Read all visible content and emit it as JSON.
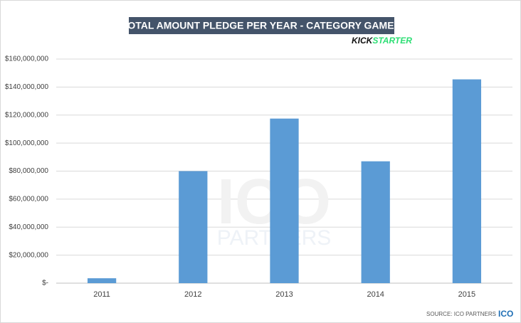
{
  "chart_data": {
    "type": "bar",
    "title": "TOTAL AMOUNT PLEDGE PER YEAR - CATEGORY GAMES",
    "logo": {
      "kick": "KICK",
      "starter": "STARTER"
    },
    "watermark": {
      "main": "ICO",
      "sub": "PARTNERS"
    },
    "source": "SOURCE: ICO PARTNERS",
    "source_logo": "ICO",
    "categories": [
      "2011",
      "2012",
      "2013",
      "2014",
      "2015"
    ],
    "values": [
      3500000,
      80000000,
      117500000,
      87000000,
      145500000
    ],
    "color": "#5b9bd5",
    "ylim": [
      0,
      160000000
    ],
    "yticks": [
      {
        "value": 0,
        "label": "$-"
      },
      {
        "value": 20000000,
        "label": "$20,000,000"
      },
      {
        "value": 40000000,
        "label": "$40,000,000"
      },
      {
        "value": 60000000,
        "label": "$60,000,000"
      },
      {
        "value": 80000000,
        "label": "$80,000,000"
      },
      {
        "value": 100000000,
        "label": "$100,000,000"
      },
      {
        "value": 120000000,
        "label": "$120,000,000"
      },
      {
        "value": 140000000,
        "label": "$140,000,000"
      },
      {
        "value": 160000000,
        "label": "$160,000,000"
      }
    ],
    "grid": true
  }
}
